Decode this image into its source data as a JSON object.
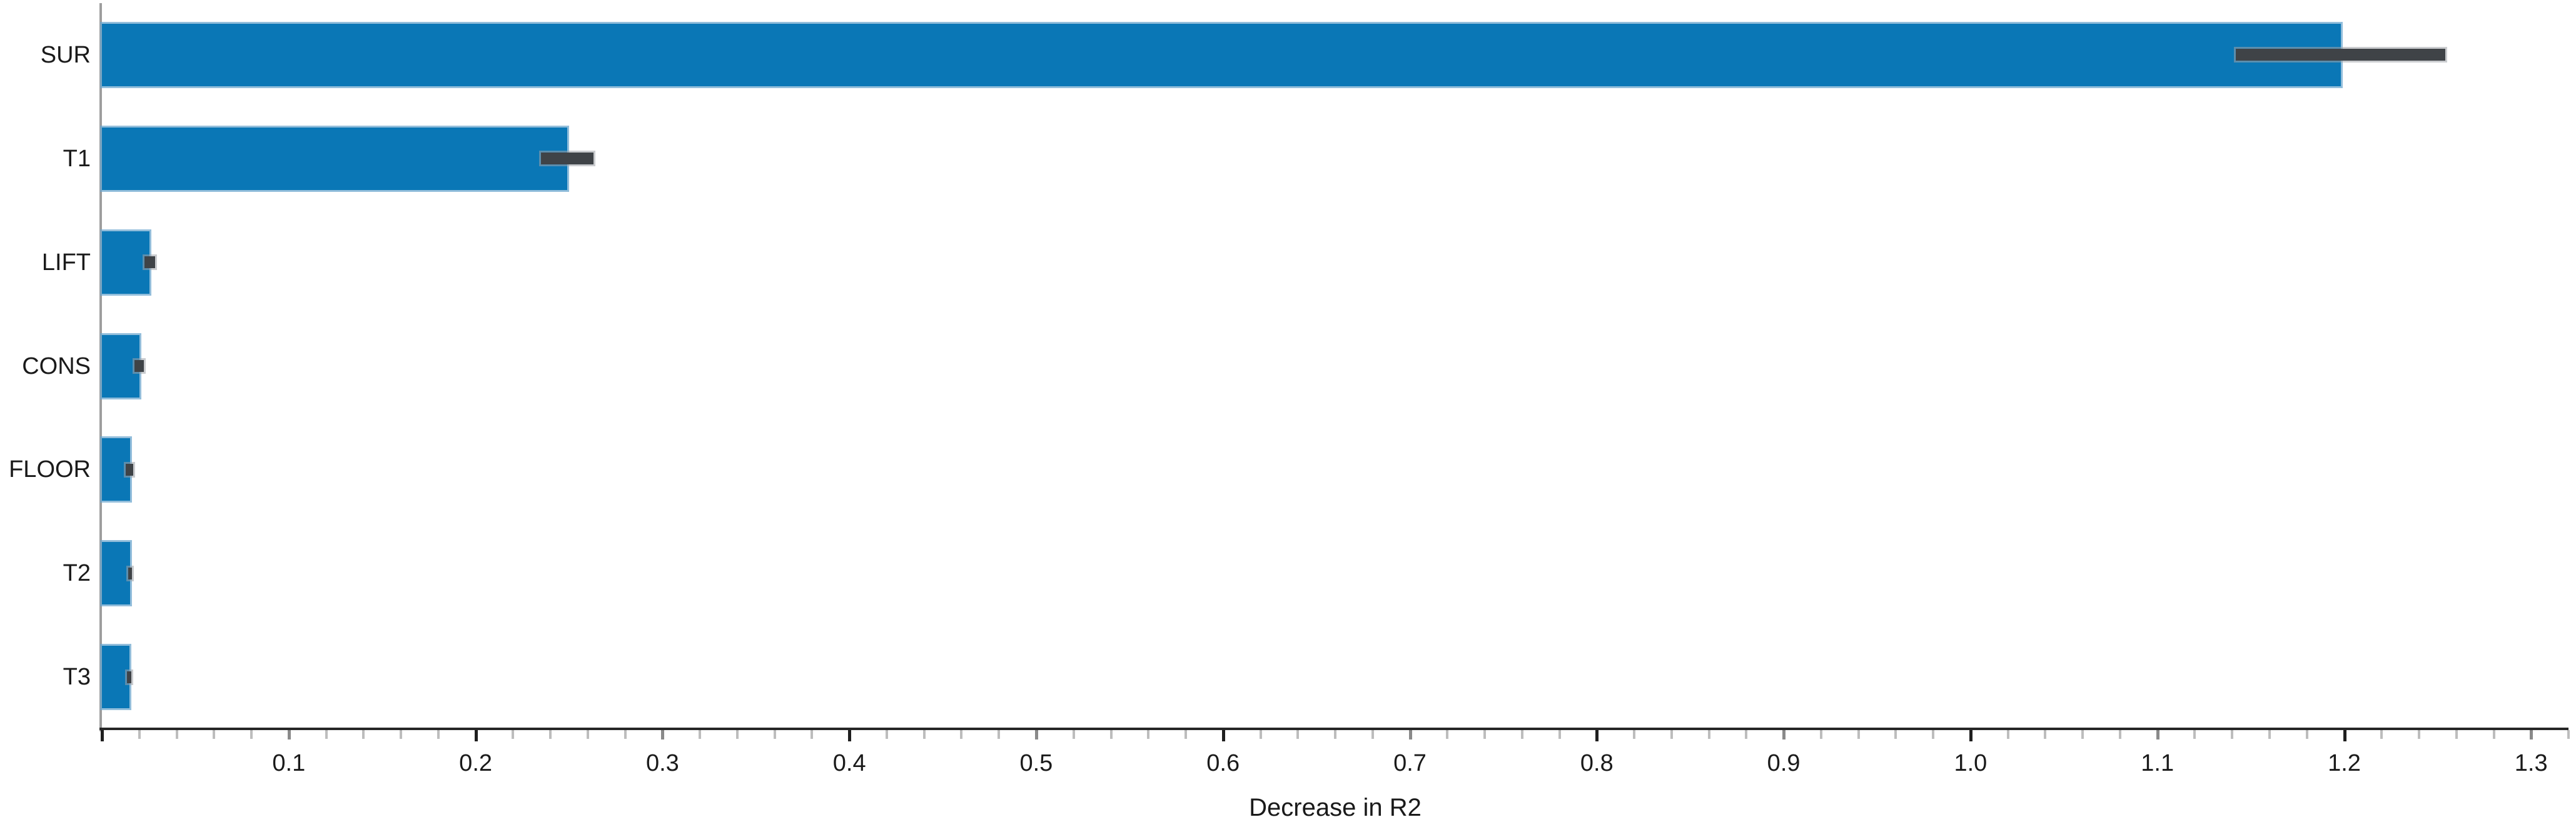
{
  "chart_data": {
    "type": "bar",
    "orientation": "horizontal",
    "title": "",
    "xlabel": "Decrease in R2",
    "ylabel": "",
    "categories": [
      "SUR",
      "T1",
      "LIFT",
      "CONS",
      "FLOOR",
      "T2",
      "T3"
    ],
    "values": [
      1.198,
      0.249,
      0.0255,
      0.0199,
      0.0152,
      0.0151,
      0.0148
    ],
    "error_low": [
      1.142,
      0.235,
      0.0229,
      0.0173,
      0.0127,
      0.014,
      0.0134
    ],
    "error_high": [
      1.254,
      0.263,
      0.0285,
      0.0224,
      0.0166,
      0.016,
      0.0156
    ],
    "xlim": [
      0,
      1.32
    ],
    "x_major_ticks": [
      0,
      0.1,
      0.2,
      0.3,
      0.4,
      0.5,
      0.6,
      0.7,
      0.8,
      0.9,
      1.0,
      1.1,
      1.2,
      1.3
    ],
    "x_tick_labels": [
      "",
      "0.1",
      "0.2",
      "0.3",
      "0.4",
      "0.5",
      "0.6",
      "0.7",
      "0.8",
      "0.9",
      "1.0",
      "1.1",
      "1.2",
      "1.3"
    ],
    "x_minor_step": 0.02,
    "grid": false,
    "legend": false
  },
  "colors": {
    "bar": "#0a77b6",
    "bar_edge": "#6fa8cf",
    "error_bar": "#3f4347",
    "x_axis": "#262626",
    "y_axis": "#9e9e9e",
    "tick_strong": "#1f1f1f",
    "tick_mid": "#8a8a8a",
    "tick_minor": "#bdbdbd",
    "text": "#1a1a1a",
    "background": "#ffffff"
  }
}
